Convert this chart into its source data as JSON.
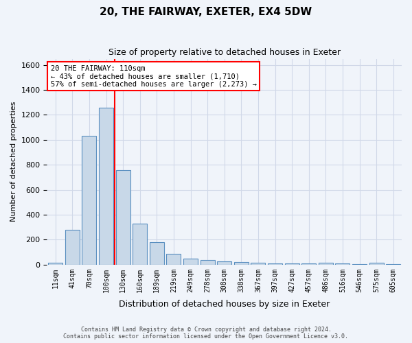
{
  "title": "20, THE FAIRWAY, EXETER, EX4 5DW",
  "subtitle": "Size of property relative to detached houses in Exeter",
  "xlabel": "Distribution of detached houses by size in Exeter",
  "ylabel": "Number of detached properties",
  "categories": [
    "11sqm",
    "41sqm",
    "70sqm",
    "100sqm",
    "130sqm",
    "160sqm",
    "189sqm",
    "219sqm",
    "249sqm",
    "278sqm",
    "308sqm",
    "338sqm",
    "367sqm",
    "397sqm",
    "427sqm",
    "457sqm",
    "486sqm",
    "516sqm",
    "546sqm",
    "575sqm",
    "605sqm"
  ],
  "values": [
    15,
    280,
    1030,
    1255,
    755,
    330,
    180,
    85,
    50,
    38,
    25,
    20,
    15,
    12,
    10,
    10,
    15,
    10,
    5,
    15,
    5
  ],
  "bar_color": "#c8d8e8",
  "bar_edge_color": "#5a8fc0",
  "grid_color": "#d0d8e8",
  "background_color": "#f0f4fa",
  "vline_x": 3.5,
  "vline_color": "red",
  "ylim": [
    0,
    1650
  ],
  "annotation_text": "20 THE FAIRWAY: 110sqm\n← 43% of detached houses are smaller (1,710)\n57% of semi-detached houses are larger (2,273) →",
  "annotation_box_color": "white",
  "annotation_box_edge": "red",
  "footer_line1": "Contains HM Land Registry data © Crown copyright and database right 2024.",
  "footer_line2": "Contains public sector information licensed under the Open Government Licence v3.0."
}
